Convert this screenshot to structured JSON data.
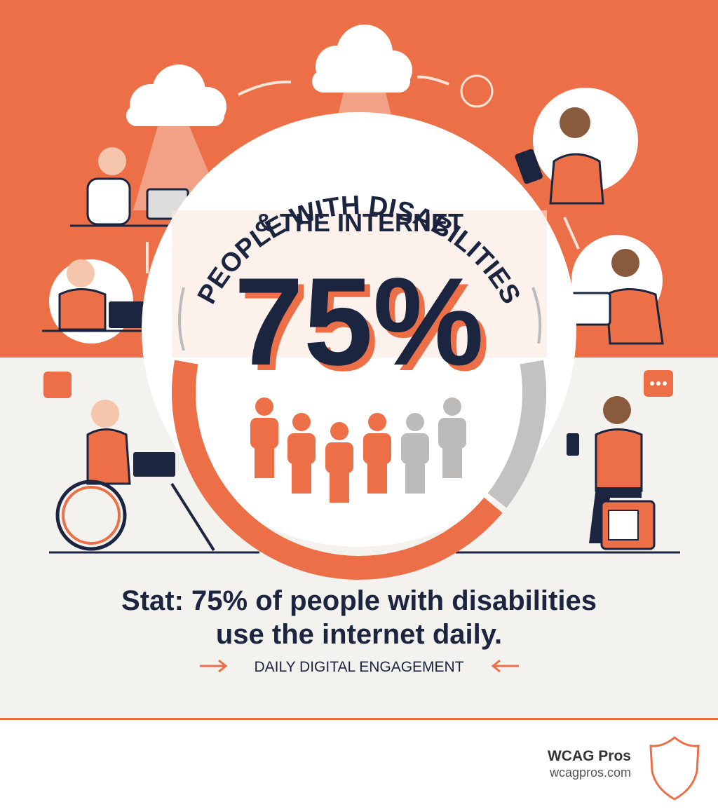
{
  "header": {
    "title_arc": "PEOPLE WITH DISABILITIES",
    "title_line": "& THE INTERNET"
  },
  "stat": {
    "value": 75,
    "label": "75%"
  },
  "caption": {
    "line1": "Stat: 75% of people with disabilities",
    "line2": "use the internet daily."
  },
  "tagline": "DAILY DIGITAL ENGAGEMENT",
  "footer": {
    "brand": "WCAG Pros",
    "url": "wcagpros.com"
  }
}
